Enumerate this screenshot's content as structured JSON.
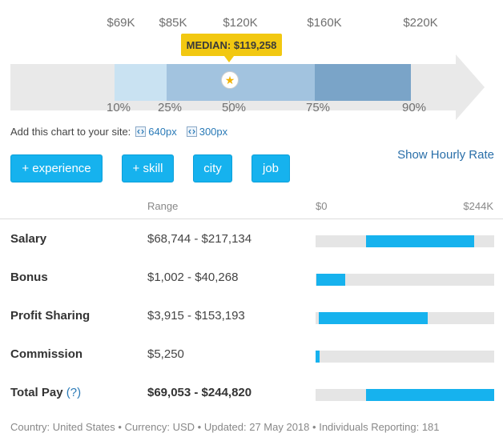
{
  "chart": {
    "top_labels": [
      "$69K",
      "$85K",
      "$120K",
      "$160K",
      "$220K"
    ],
    "percentile_labels": [
      "10%",
      "25%",
      "50%",
      "75%",
      "90%"
    ],
    "median_label": "MEDIAN: $119,258",
    "colors": {
      "p10_25": "#c9e2f2",
      "p25_75": "#a2c3df",
      "p75_90": "#7aa4c8",
      "background": "#e9e9e9",
      "median_badge": "#f2c811"
    },
    "median_marker_icon": "star-icon"
  },
  "embed": {
    "label": "Add this chart to your site:",
    "link_640": "640px",
    "link_300": "300px",
    "icon": "embed-code-icon"
  },
  "hourly_link": "Show Hourly Rate",
  "filters": [
    "+ experience",
    "+ skill",
    "city",
    "job"
  ],
  "table": {
    "range_header": "Range",
    "scale_min": "$0",
    "scale_max": "$244K",
    "scale_max_value": 244820,
    "rows": [
      {
        "name": "Salary",
        "range": "$68,744 - $217,134",
        "low": 68744,
        "high": 217134
      },
      {
        "name": "Bonus",
        "range": "$1,002 - $40,268",
        "low": 1002,
        "high": 40268
      },
      {
        "name": "Profit Sharing",
        "range": "$3,915 - $153,193",
        "low": 3915,
        "high": 153193
      },
      {
        "name": "Commission",
        "range": "$5,250",
        "low": 0,
        "high": 5250
      },
      {
        "name": "Total Pay",
        "help": "(?)",
        "range": "$69,053 - $244,820",
        "low": 69053,
        "high": 244820
      }
    ]
  },
  "footer": {
    "country": "Country: United States",
    "currency": "Currency: USD",
    "updated": "Updated: 27 May 2018",
    "reporting": "Individuals Reporting: 181",
    "separator": "•"
  }
}
